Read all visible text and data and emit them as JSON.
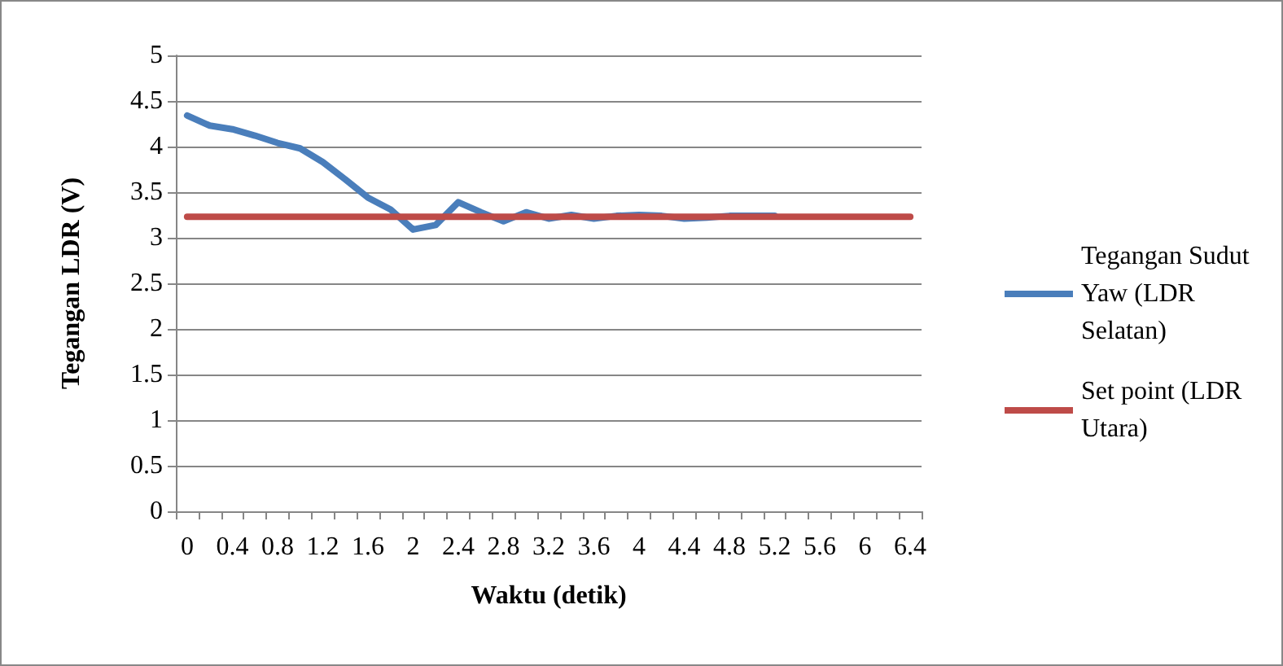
{
  "chart_data": {
    "type": "line",
    "xlabel": "Waktu (detik)",
    "ylabel": "Tegangan LDR (V)",
    "categories": [
      "0",
      null,
      "0.4",
      null,
      "0.8",
      null,
      "1.2",
      null,
      "1.6",
      null,
      "2",
      null,
      "2.4",
      null,
      "2.8",
      null,
      "3.2",
      null,
      "3.6",
      null,
      "4",
      null,
      "4.4",
      null,
      "4.8",
      null,
      "5.2",
      null,
      "5.6",
      null,
      "6",
      null,
      "6.4"
    ],
    "series": [
      {
        "name": "Tegangan Sudut Yaw (LDR Selatan)",
        "color": "#4a7ebb",
        "values": [
          4.34,
          4.23,
          4.19,
          4.12,
          4.04,
          3.98,
          3.83,
          3.64,
          3.44,
          3.31,
          3.09,
          3.14,
          3.39,
          3.28,
          3.18,
          3.28,
          3.21,
          3.25,
          3.21,
          3.24,
          3.25,
          3.24,
          3.21,
          3.22,
          3.24,
          3.24,
          3.24,
          null,
          null,
          null,
          null,
          null,
          null
        ]
      },
      {
        "name": "Set point (LDR Utara)",
        "color": "#be4b48",
        "values": [
          3.23,
          3.23,
          3.23,
          3.23,
          3.23,
          3.23,
          3.23,
          3.23,
          3.23,
          3.23,
          3.23,
          3.23,
          3.23,
          3.23,
          3.23,
          3.23,
          3.23,
          3.23,
          3.23,
          3.23,
          3.23,
          3.23,
          3.23,
          3.23,
          3.23,
          3.23,
          3.23,
          3.23,
          3.23,
          3.23,
          3.23,
          3.23,
          3.23
        ]
      }
    ],
    "ylim": [
      0,
      5
    ],
    "yticks": [
      0,
      0.5,
      1,
      1.5,
      2,
      2.5,
      3,
      3.5,
      4,
      4.5,
      5
    ],
    "grid": "y",
    "legend": "right",
    "marker": "none",
    "line_style": "solid"
  }
}
